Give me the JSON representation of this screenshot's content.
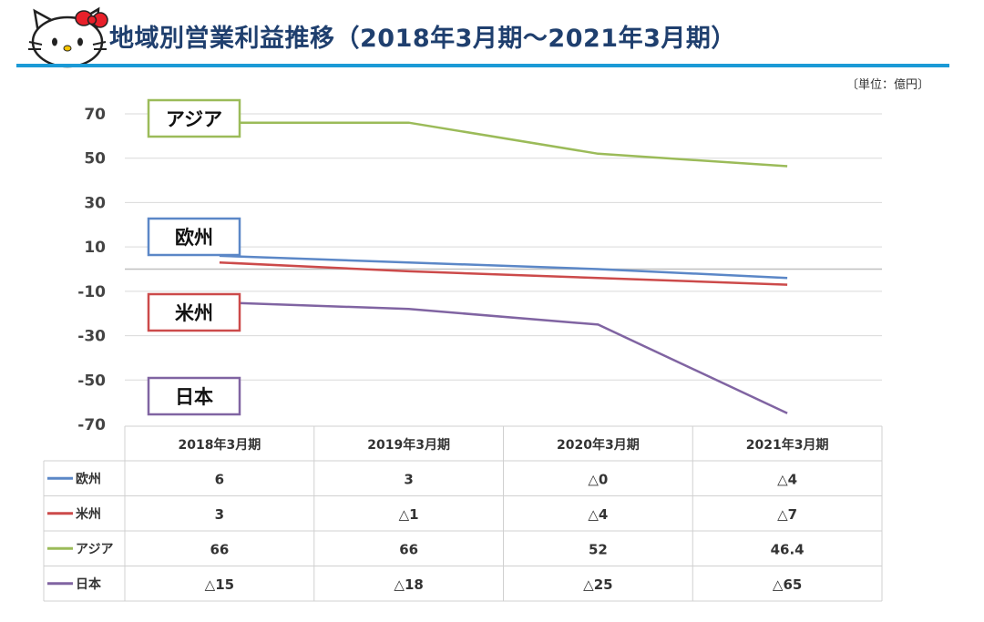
{
  "page": {
    "title": "地域別営業利益推移（2018年3月期～2021年3月期）",
    "unit": "〔単位：億円〕"
  },
  "colors": {
    "europe": "#5b87c7",
    "americas": "#cc4a4a",
    "asia": "#9bbb59",
    "japan": "#8064a2",
    "header_line": "#1b9ad6",
    "title": "#1f3f6e"
  },
  "chart_data": {
    "type": "line",
    "title": "地域別営業利益推移（2018年3月期～2021年3月期）",
    "ylabel": "〔単位：億円〕",
    "ylim": [
      -70,
      70
    ],
    "yticks": [
      "70",
      "50",
      "30",
      "10",
      "-10",
      "-30",
      "-50",
      "-70"
    ],
    "ytick_values": [
      70,
      50,
      30,
      10,
      -10,
      -30,
      -50,
      -70
    ],
    "categories": [
      "2018年3月期",
      "2019年3月期",
      "2020年3月期",
      "2021年3月期"
    ],
    "series": [
      {
        "key": "europe",
        "name": "欧州",
        "values": [
          6,
          3,
          0,
          -4
        ],
        "labels": [
          "6",
          "3",
          "△0",
          "△4"
        ]
      },
      {
        "key": "americas",
        "name": "米州",
        "values": [
          3,
          -1,
          -4,
          -7
        ],
        "labels": [
          "3",
          "△1",
          "△4",
          "△7"
        ]
      },
      {
        "key": "asia",
        "name": "アジア",
        "values": [
          66,
          66,
          52,
          46.4
        ],
        "labels": [
          "66",
          "66",
          "52",
          "46.4"
        ]
      },
      {
        "key": "japan",
        "name": "日本",
        "values": [
          -15,
          -18,
          -25,
          -65
        ],
        "labels": [
          "△15",
          "△18",
          "△25",
          "△65"
        ]
      }
    ],
    "annotations": [
      "アジア",
      "欧州",
      "米州",
      "日本"
    ]
  }
}
